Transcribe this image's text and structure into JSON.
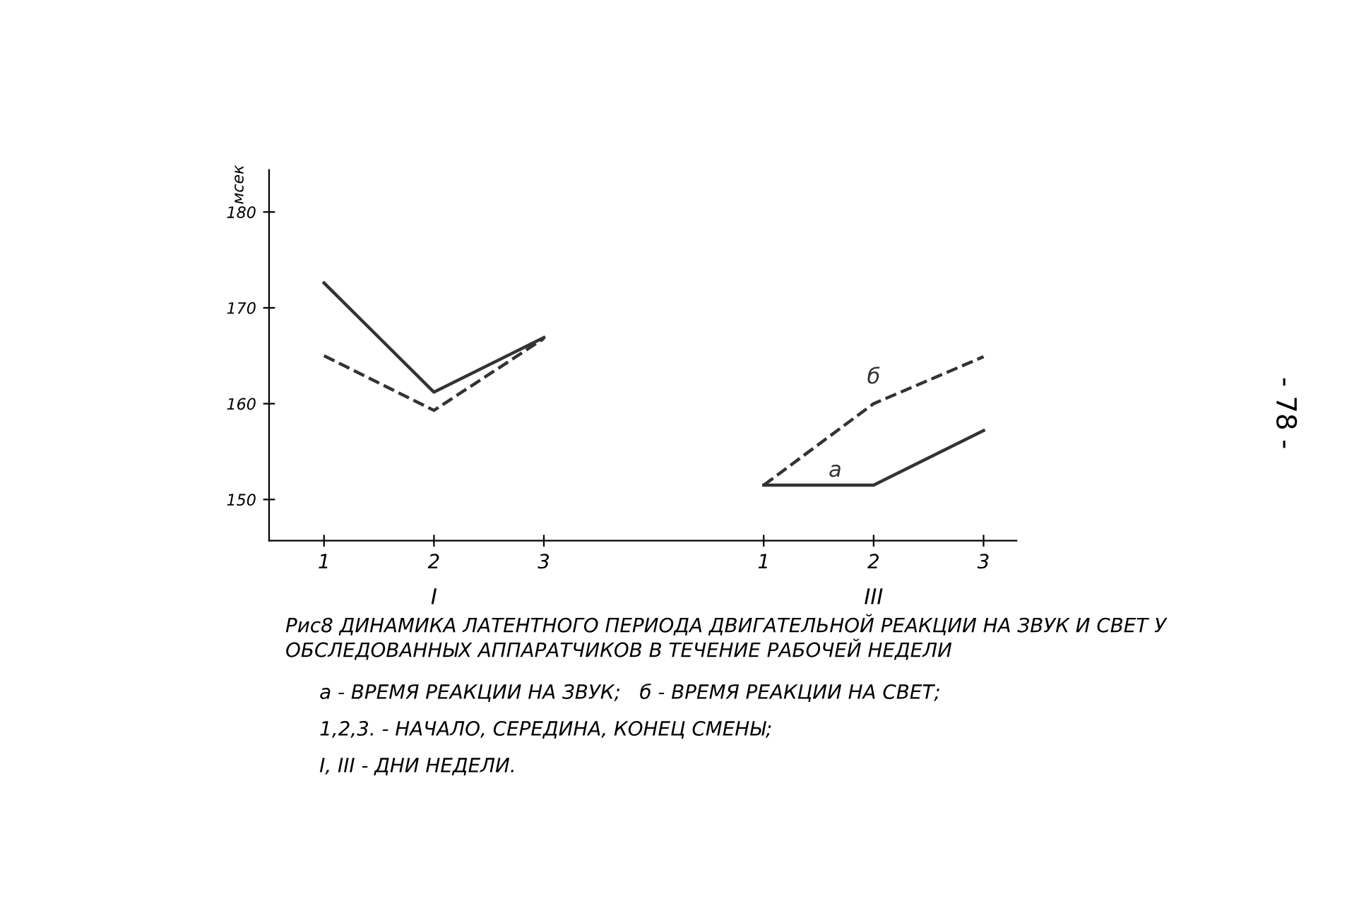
{
  "chart_data": {
    "type": "line",
    "ylabel": "мсек",
    "categories": [
      "1",
      "2",
      "3",
      null,
      "1",
      "2",
      "3"
    ],
    "series": [
      {
        "name": "а",
        "color": "#333333",
        "line_style": "solid",
        "values": [
          172.6,
          161.2,
          166.9,
          null,
          151.5,
          151.5,
          157.2
        ]
      },
      {
        "name": "б",
        "color": "#333333",
        "line_style": "dashed",
        "values": [
          165.0,
          159.3,
          166.8,
          null,
          151.5,
          160.0,
          164.9
        ]
      }
    ],
    "ylim": [
      145.7,
      184.4
    ],
    "yticks": [
      150,
      160,
      170,
      180
    ],
    "grid": false,
    "legend": false,
    "marker": "none",
    "annotations": [
      "I",
      "III",
      "Рис8 ДИНАМИКА ЛАТЕНТНОГО ПЕРИОДА ДВИГАТЕЛЬНОЙ РЕАКЦИИ НА ЗВУК И СВЕТ У ОБСЛЕДОВАННЫХ АППАРАТЧИКОВ В ТЕЧЕНИЕ РАБОЧЕЙ НЕДЕЛИ",
      "а - ВРЕМЯ РЕАКЦИИ НА ЗВУК;   б - ВРЕМЯ РЕАКЦИИ НА СВЕТ;",
      "1,2,3. - НАЧАЛО, СЕРЕДИНА, КОНЕЦ СМЕНЫ;",
      "I, III - ДНИ НЕДЕЛИ.",
      "- 78 -"
    ]
  }
}
